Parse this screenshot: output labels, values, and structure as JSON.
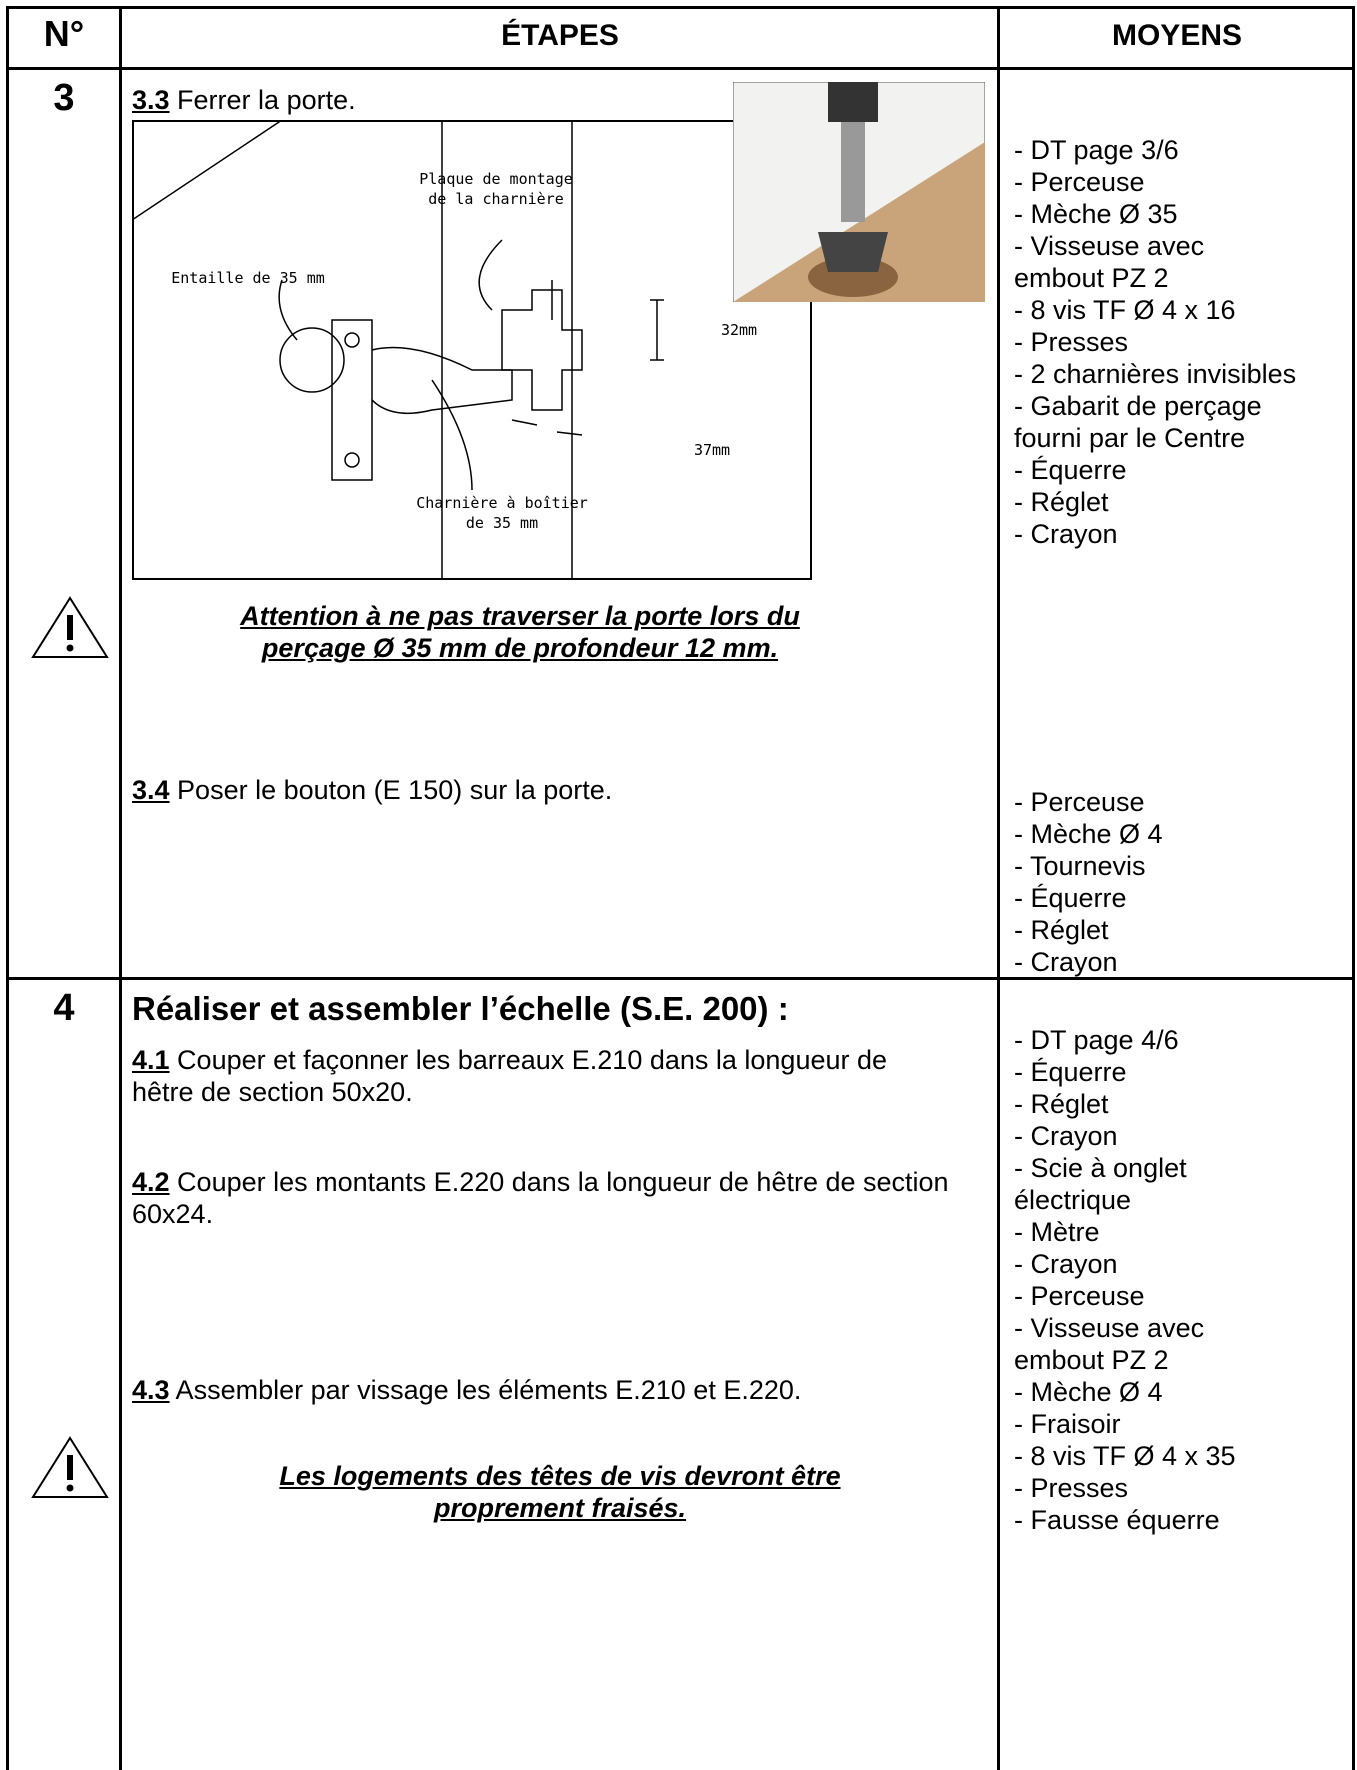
{
  "table": {
    "headers": [
      "N°",
      "ÉTAPES",
      "MOYENS"
    ],
    "rows": [
      {
        "number": "3",
        "step_a": {
          "code": "3.3",
          "text": " Ferrer la porte."
        },
        "diagram": {
          "plate_label": [
            "Plaque de montage",
            "de la charnière"
          ],
          "notch_label": "Entaille de 35 mm",
          "spacing_label": "32mm",
          "offset_label": "37mm",
          "hinge_label": [
            "Charnière à boîtier",
            "de 35 mm"
          ]
        },
        "warning": [
          "Attention à ne pas traverser la porte lors du",
          "perçage Ø 35 mm de profondeur 12 mm."
        ],
        "step_b": {
          "code": "3.4",
          "text": " Poser le bouton (E 150) sur la porte."
        },
        "means_a": [
          "- DT page 3/6",
          "- Perceuse",
          "- Mèche Ø 35",
          "- Visseuse avec",
          "embout PZ 2",
          "- 8 vis TF Ø 4 x 16",
          "- Presses",
          "- 2 charnières invisibles",
          "- Gabarit de perçage",
          "fourni par le Centre",
          "- Équerre",
          "- Réglet",
          "- Crayon"
        ],
        "means_b": [
          "- Perceuse",
          "- Mèche Ø 4",
          "- Tournevis",
          "- Équerre",
          "- Réglet",
          "- Crayon"
        ]
      },
      {
        "number": "4",
        "heading": "Réaliser et assembler l’échelle (S.E. 200) :",
        "steps": [
          {
            "code": "4.1",
            "text": " Couper et façonner les barreaux E.210 dans la longueur de hêtre de section 50x20."
          },
          {
            "code": "4.2",
            "text": " Couper les montants E.220 dans la longueur de hêtre de section 60x24."
          },
          {
            "code": "4.3",
            "text": " Assembler par vissage les éléments E.210 et E.220."
          }
        ],
        "warning": [
          "Les logements des têtes de vis devront être",
          "proprement fraisés."
        ],
        "means": [
          "- DT page 4/6",
          "- Équerre",
          "- Réglet",
          "- Crayon",
          "- Scie à onglet",
          "électrique",
          "- Mètre",
          "- Crayon",
          "- Perceuse",
          "- Visseuse avec",
          "embout PZ 2",
          "- Mèche Ø 4",
          "- Fraisoir",
          "- 8 vis TF Ø 4 x 35",
          "- Presses",
          "- Fausse équerre"
        ]
      }
    ]
  }
}
